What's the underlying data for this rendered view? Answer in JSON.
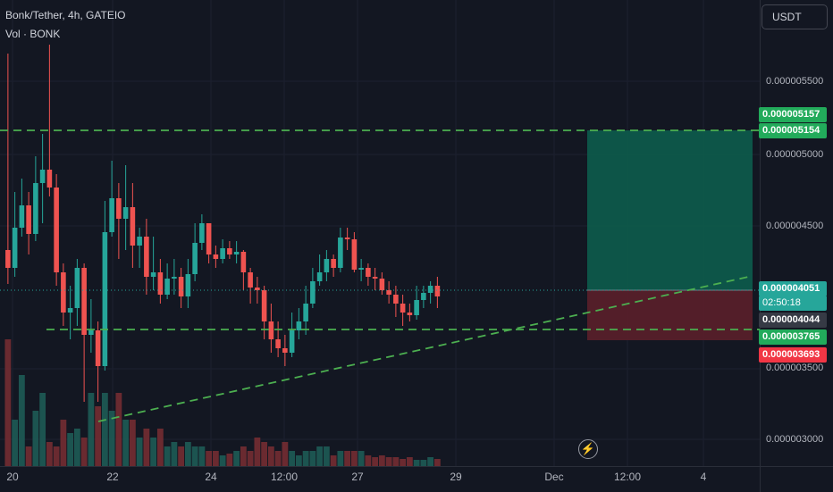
{
  "header": {
    "title": "Bonk/Tether, 4h, GATEIO",
    "volume_label": "Vol · BONK"
  },
  "axis": {
    "currency": "USDT",
    "y_ticks": [
      "0.000005500",
      "0.000005000",
      "0.000004500",
      "0.000003500",
      "0.000003000"
    ],
    "x_ticks": [
      "20",
      "22",
      "24",
      "12:00",
      "27",
      "29",
      "Dec",
      "12:00",
      "4"
    ]
  },
  "price_tags": {
    "take_profit": "0.000005157",
    "top_line": "0.000005154",
    "last_price": "0.000004051",
    "countdown": "02:50:18",
    "entry": "0.000004044",
    "support": "0.000003765",
    "stop_loss": "0.000003693"
  },
  "colors": {
    "background": "#131722",
    "up": "#26a69a",
    "down": "#ef5350",
    "level_line": "#4caf50",
    "take_profit_zone": "#0d5c4d",
    "stop_loss_zone": "#5b1f2a",
    "tag_green": "#22ab5b",
    "tag_red": "#f23645",
    "tag_grey": "#363a45"
  },
  "icons": {
    "alert": "lightning-icon"
  }
}
